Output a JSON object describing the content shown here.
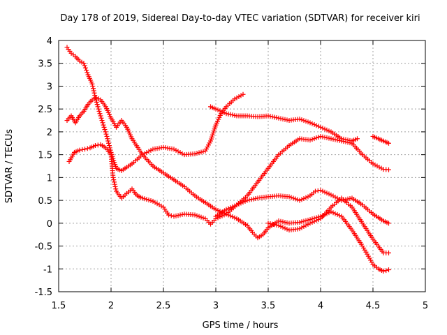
{
  "chart_data": {
    "type": "scatter",
    "title": "Day 178 of 2019, Sidereal Day-to-day VTEC variation (SDTVAR) for receiver kiri",
    "xlabel": "GPS time / hours",
    "ylabel": "SDTVAR / TECUs",
    "xlim": [
      1.5,
      5
    ],
    "ylim": [
      -1.5,
      4
    ],
    "xticks": [
      "1.5",
      "2",
      "2.5",
      "3",
      "3.5",
      "4",
      "4.5",
      "5"
    ],
    "yticks": [
      "-1.5",
      "-1",
      "-0.5",
      "0",
      "0.5",
      "1",
      "1.5",
      "2",
      "2.5",
      "3",
      "3.5",
      "4"
    ],
    "grid": true,
    "marker": "+",
    "color": "#ff0000",
    "series": [
      {
        "name": "track-1",
        "points": [
          [
            1.58,
            3.85
          ],
          [
            1.62,
            3.72
          ],
          [
            1.66,
            3.65
          ],
          [
            1.7,
            3.55
          ],
          [
            1.74,
            3.5
          ],
          [
            1.78,
            3.25
          ],
          [
            1.82,
            3.05
          ],
          [
            1.85,
            2.75
          ],
          [
            1.88,
            2.5
          ],
          [
            1.92,
            2.2
          ],
          [
            1.96,
            1.9
          ],
          [
            2.0,
            1.55
          ],
          [
            2.05,
            1.2
          ],
          [
            2.1,
            1.15
          ],
          [
            2.2,
            1.3
          ],
          [
            2.3,
            1.5
          ],
          [
            2.4,
            1.62
          ],
          [
            2.5,
            1.66
          ],
          [
            2.6,
            1.62
          ],
          [
            2.7,
            1.5
          ],
          [
            2.8,
            1.52
          ],
          [
            2.9,
            1.58
          ],
          [
            2.95,
            1.8
          ],
          [
            3.0,
            2.15
          ],
          [
            3.05,
            2.4
          ],
          [
            3.1,
            2.55
          ],
          [
            3.18,
            2.72
          ],
          [
            3.26,
            2.82
          ]
        ]
      },
      {
        "name": "track-2",
        "points": [
          [
            1.58,
            2.25
          ],
          [
            1.62,
            2.35
          ],
          [
            1.66,
            2.2
          ],
          [
            1.7,
            2.35
          ],
          [
            1.74,
            2.45
          ],
          [
            1.78,
            2.6
          ],
          [
            1.82,
            2.7
          ],
          [
            1.86,
            2.75
          ],
          [
            1.9,
            2.7
          ],
          [
            1.95,
            2.55
          ],
          [
            2.0,
            2.3
          ],
          [
            2.05,
            2.1
          ],
          [
            2.1,
            2.25
          ],
          [
            2.15,
            2.1
          ],
          [
            2.2,
            1.85
          ],
          [
            2.3,
            1.5
          ],
          [
            2.4,
            1.25
          ],
          [
            2.5,
            1.1
          ],
          [
            2.6,
            0.95
          ],
          [
            2.7,
            0.8
          ],
          [
            2.8,
            0.6
          ],
          [
            2.9,
            0.45
          ],
          [
            3.0,
            0.3
          ],
          [
            3.1,
            0.2
          ],
          [
            3.2,
            0.1
          ],
          [
            3.3,
            -0.05
          ],
          [
            3.35,
            -0.2
          ],
          [
            3.4,
            -0.32
          ],
          [
            3.45,
            -0.25
          ],
          [
            3.5,
            -0.1
          ],
          [
            3.6,
            0.05
          ],
          [
            3.7,
            0.0
          ],
          [
            3.8,
            0.02
          ],
          [
            3.9,
            0.08
          ],
          [
            4.0,
            0.15
          ],
          [
            4.1,
            0.25
          ],
          [
            4.2,
            0.15
          ],
          [
            4.3,
            -0.15
          ],
          [
            4.4,
            -0.5
          ],
          [
            4.5,
            -0.9
          ],
          [
            4.55,
            -1.0
          ],
          [
            4.6,
            -1.05
          ],
          [
            4.65,
            -1.02
          ]
        ]
      },
      {
        "name": "track-3",
        "points": [
          [
            1.6,
            1.35
          ],
          [
            1.65,
            1.55
          ],
          [
            1.7,
            1.6
          ],
          [
            1.75,
            1.62
          ],
          [
            1.8,
            1.65
          ],
          [
            1.85,
            1.7
          ],
          [
            1.9,
            1.72
          ],
          [
            1.95,
            1.65
          ],
          [
            2.0,
            1.5
          ],
          [
            2.02,
            1.0
          ],
          [
            2.05,
            0.7
          ],
          [
            2.1,
            0.55
          ],
          [
            2.15,
            0.65
          ],
          [
            2.2,
            0.75
          ],
          [
            2.25,
            0.6
          ],
          [
            2.3,
            0.55
          ],
          [
            2.4,
            0.48
          ],
          [
            2.5,
            0.35
          ],
          [
            2.55,
            0.18
          ],
          [
            2.6,
            0.15
          ],
          [
            2.7,
            0.2
          ],
          [
            2.8,
            0.18
          ],
          [
            2.9,
            0.1
          ],
          [
            2.95,
            -0.02
          ],
          [
            3.0,
            0.1
          ],
          [
            3.1,
            0.2
          ],
          [
            3.2,
            0.4
          ],
          [
            3.3,
            0.6
          ],
          [
            3.4,
            0.9
          ],
          [
            3.5,
            1.2
          ],
          [
            3.6,
            1.5
          ],
          [
            3.7,
            1.7
          ],
          [
            3.8,
            1.85
          ],
          [
            3.9,
            1.82
          ],
          [
            4.0,
            1.9
          ],
          [
            4.1,
            1.85
          ],
          [
            4.2,
            1.8
          ],
          [
            4.3,
            1.75
          ],
          [
            4.4,
            1.5
          ],
          [
            4.5,
            1.3
          ],
          [
            4.6,
            1.18
          ],
          [
            4.65,
            1.17
          ]
        ]
      },
      {
        "name": "track-4",
        "points": [
          [
            2.95,
            2.55
          ],
          [
            3.0,
            2.5
          ],
          [
            3.1,
            2.4
          ],
          [
            3.2,
            2.35
          ],
          [
            3.3,
            2.35
          ],
          [
            3.4,
            2.33
          ],
          [
            3.5,
            2.35
          ],
          [
            3.6,
            2.3
          ],
          [
            3.7,
            2.25
          ],
          [
            3.8,
            2.28
          ],
          [
            3.9,
            2.2
          ],
          [
            4.0,
            2.1
          ],
          [
            4.1,
            2.0
          ],
          [
            4.2,
            1.85
          ],
          [
            4.3,
            1.8
          ],
          [
            4.35,
            1.85
          ]
        ]
      },
      {
        "name": "track-5",
        "points": [
          [
            4.5,
            1.9
          ],
          [
            4.55,
            1.85
          ],
          [
            4.6,
            1.8
          ],
          [
            4.65,
            1.75
          ]
        ]
      },
      {
        "name": "track-6",
        "points": [
          [
            3.0,
            0.15
          ],
          [
            3.1,
            0.3
          ],
          [
            3.2,
            0.4
          ],
          [
            3.3,
            0.5
          ],
          [
            3.4,
            0.55
          ],
          [
            3.5,
            0.58
          ],
          [
            3.6,
            0.6
          ],
          [
            3.7,
            0.58
          ],
          [
            3.8,
            0.5
          ],
          [
            3.9,
            0.6
          ],
          [
            3.95,
            0.7
          ],
          [
            4.0,
            0.72
          ],
          [
            4.1,
            0.62
          ],
          [
            4.2,
            0.5
          ],
          [
            4.3,
            0.55
          ],
          [
            4.4,
            0.4
          ],
          [
            4.5,
            0.2
          ],
          [
            4.6,
            0.05
          ],
          [
            4.65,
            0.0
          ]
        ]
      },
      {
        "name": "track-7",
        "points": [
          [
            3.5,
            0.0
          ],
          [
            3.6,
            -0.05
          ],
          [
            3.7,
            -0.15
          ],
          [
            3.8,
            -0.12
          ],
          [
            3.9,
            0.0
          ],
          [
            4.0,
            0.1
          ],
          [
            4.1,
            0.35
          ],
          [
            4.2,
            0.55
          ],
          [
            4.3,
            0.35
          ],
          [
            4.4,
            0.0
          ],
          [
            4.5,
            -0.35
          ],
          [
            4.6,
            -0.65
          ],
          [
            4.65,
            -0.65
          ]
        ]
      }
    ]
  }
}
